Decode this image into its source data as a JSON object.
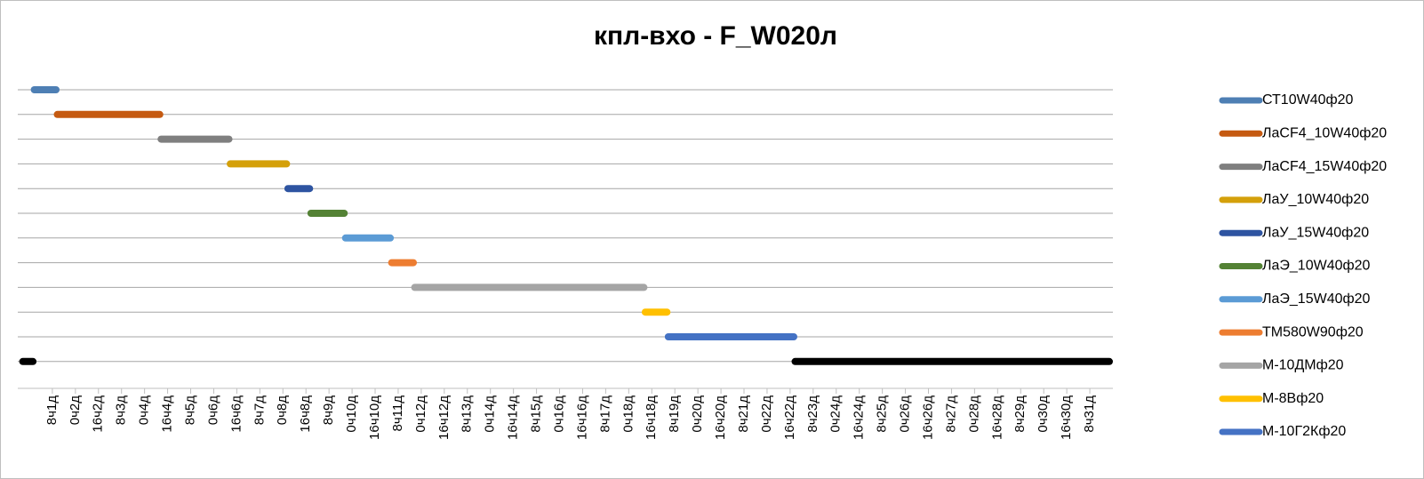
{
  "chart_data": {
    "type": "gantt",
    "title": "кпл-вхо - F_W020л",
    "xlim": [
      0,
      760
    ],
    "xticks": [
      {
        "value": 24,
        "label": "8ч1д"
      },
      {
        "value": 40,
        "label": "0ч2д"
      },
      {
        "value": 56,
        "label": "16ч2д"
      },
      {
        "value": 72,
        "label": "8ч3д"
      },
      {
        "value": 88,
        "label": "0ч4д"
      },
      {
        "value": 104,
        "label": "16ч4д"
      },
      {
        "value": 120,
        "label": "8ч5д"
      },
      {
        "value": 136,
        "label": "0ч6д"
      },
      {
        "value": 152,
        "label": "16ч6д"
      },
      {
        "value": 168,
        "label": "8ч7д"
      },
      {
        "value": 184,
        "label": "0ч8д"
      },
      {
        "value": 200,
        "label": "16ч8д"
      },
      {
        "value": 216,
        "label": "8ч9д"
      },
      {
        "value": 232,
        "label": "0ч10д"
      },
      {
        "value": 248,
        "label": "16ч10д"
      },
      {
        "value": 264,
        "label": "8ч11д"
      },
      {
        "value": 280,
        "label": "0ч12д"
      },
      {
        "value": 296,
        "label": "16ч12д"
      },
      {
        "value": 312,
        "label": "8ч13д"
      },
      {
        "value": 328,
        "label": "0ч14д"
      },
      {
        "value": 344,
        "label": "16ч14д"
      },
      {
        "value": 360,
        "label": "8ч15д"
      },
      {
        "value": 376,
        "label": "0ч16д"
      },
      {
        "value": 392,
        "label": "16ч16д"
      },
      {
        "value": 408,
        "label": "8ч17д"
      },
      {
        "value": 424,
        "label": "0ч18д"
      },
      {
        "value": 440,
        "label": "16ч18д"
      },
      {
        "value": 456,
        "label": "8ч19д"
      },
      {
        "value": 472,
        "label": "0ч20д"
      },
      {
        "value": 488,
        "label": "16ч20д"
      },
      {
        "value": 504,
        "label": "8ч21д"
      },
      {
        "value": 520,
        "label": "0ч22д"
      },
      {
        "value": 536,
        "label": "16ч22д"
      },
      {
        "value": 552,
        "label": "8ч23д"
      },
      {
        "value": 568,
        "label": "0ч24д"
      },
      {
        "value": 584,
        "label": "16ч24д"
      },
      {
        "value": 600,
        "label": "8ч25д"
      },
      {
        "value": 616,
        "label": "0ч26д"
      },
      {
        "value": 632,
        "label": "16ч26д"
      },
      {
        "value": 648,
        "label": "8ч27д"
      },
      {
        "value": 664,
        "label": "0ч28д"
      },
      {
        "value": 680,
        "label": "16ч28д"
      },
      {
        "value": 696,
        "label": "8ч29д"
      },
      {
        "value": 712,
        "label": "0ч30д"
      },
      {
        "value": 728,
        "label": "16ч30д"
      },
      {
        "value": 744,
        "label": "8ч31д"
      }
    ],
    "series": [
      {
        "name": "СТ10W40ф20",
        "color": "#4e7fb4",
        "start": [
          9
        ],
        "end": [
          29
        ]
      },
      {
        "name": "ЛаCF4_10W40ф20",
        "color": "#c55a11",
        "start": [
          25
        ],
        "end": [
          101
        ]
      },
      {
        "name": "ЛаCF4_15W40ф20",
        "color": "#7f7f7f",
        "start": [
          97
        ],
        "end": [
          149
        ]
      },
      {
        "name": "ЛаУ_10W40ф20",
        "color": "#d4a00a",
        "start": [
          145
        ],
        "end": [
          189
        ]
      },
      {
        "name": "ЛаУ_15W40ф20",
        "color": "#2e54a1",
        "start": [
          185
        ],
        "end": [
          205
        ]
      },
      {
        "name": "ЛаЭ_10W40ф20",
        "color": "#548235",
        "start": [
          201
        ],
        "end": [
          229
        ]
      },
      {
        "name": "ЛаЭ_15W40ф20",
        "color": "#5b9bd5",
        "start": [
          225
        ],
        "end": [
          261
        ]
      },
      {
        "name": "ТМ580W90ф20",
        "color": "#ed7d31",
        "start": [
          257
        ],
        "end": [
          277
        ]
      },
      {
        "name": "М-10ДМф20",
        "color": "#a5a5a5",
        "start": [
          273
        ],
        "end": [
          437
        ]
      },
      {
        "name": "М-8Вф20",
        "color": "#ffc000",
        "start": [
          433
        ],
        "end": [
          453
        ]
      },
      {
        "name": "М-10Г2Кф20",
        "color": "#4472c4",
        "start": [
          449
        ],
        "end": [
          541
        ]
      },
      {
        "color": "#000000",
        "start": [
          1,
          537
        ],
        "end": [
          13,
          760
        ]
      }
    ]
  }
}
